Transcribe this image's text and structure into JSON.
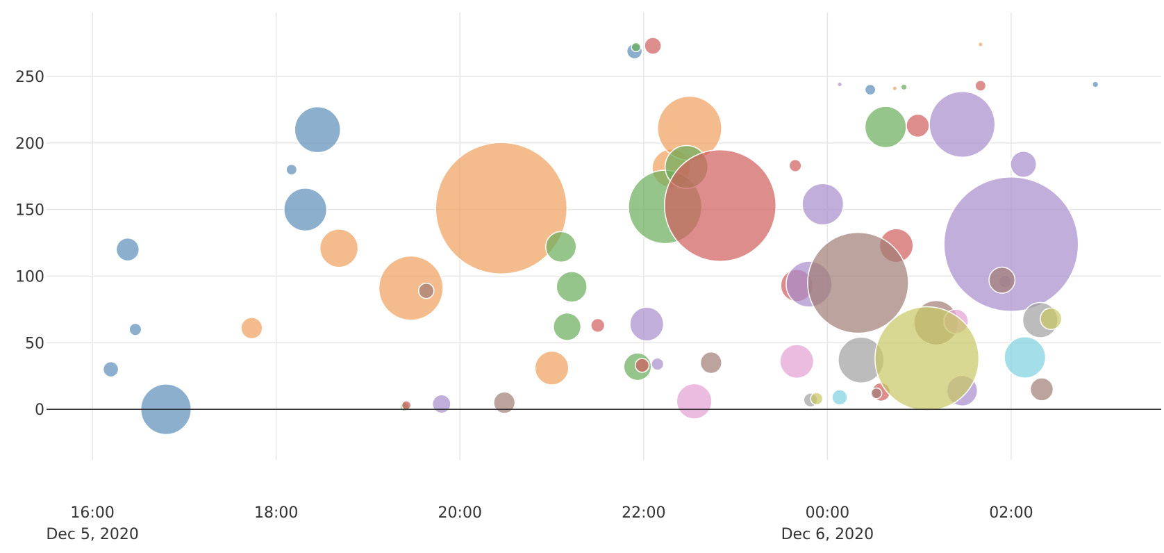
{
  "chart_data": {
    "type": "scatter",
    "marker": "bubble",
    "title": "",
    "xlabel": "",
    "ylabel": "",
    "grid": true,
    "legend": "none",
    "xlim": [
      "2020-12-05T15:30",
      "2020-12-06T03:38"
    ],
    "ylim": [
      -38,
      298
    ],
    "x_ticks": [
      {
        "value": "2020-12-05T16:00",
        "label": "16:00",
        "sublabel": "Dec 5, 2020"
      },
      {
        "value": "2020-12-05T18:00",
        "label": "18:00",
        "sublabel": ""
      },
      {
        "value": "2020-12-05T20:00",
        "label": "20:00",
        "sublabel": ""
      },
      {
        "value": "2020-12-05T22:00",
        "label": "22:00",
        "sublabel": ""
      },
      {
        "value": "2020-12-06T00:00",
        "label": "00:00",
        "sublabel": "Dec 6, 2020"
      },
      {
        "value": "2020-12-06T02:00",
        "label": "02:00",
        "sublabel": ""
      }
    ],
    "y_ticks": [
      0,
      50,
      100,
      150,
      200,
      250
    ],
    "series": [
      {
        "color": "#5b8db8",
        "points": [
          {
            "x": "2020-12-05T16:12",
            "y": 30,
            "size": 10
          },
          {
            "x": "2020-12-05T16:23",
            "y": 120,
            "size": 15
          },
          {
            "x": "2020-12-05T16:28",
            "y": 60,
            "size": 8
          },
          {
            "x": "2020-12-05T16:48",
            "y": 0,
            "size": 33
          },
          {
            "x": "2020-12-05T18:10",
            "y": 180,
            "size": 7
          },
          {
            "x": "2020-12-05T18:19",
            "y": 150,
            "size": 28
          },
          {
            "x": "2020-12-05T18:27",
            "y": 210,
            "size": 30
          },
          {
            "x": "2020-12-05T21:54",
            "y": 269,
            "size": 10
          },
          {
            "x": "2020-12-06T00:28",
            "y": 240,
            "size": 7
          },
          {
            "x": "2020-12-06T02:55",
            "y": 244,
            "size": 4
          }
        ]
      },
      {
        "color": "#f0a05c",
        "points": [
          {
            "x": "2020-12-05T17:44",
            "y": 61,
            "size": 14
          },
          {
            "x": "2020-12-05T18:41",
            "y": 121,
            "size": 25
          },
          {
            "x": "2020-12-05T19:28",
            "y": 91,
            "size": 42
          },
          {
            "x": "2020-12-05T20:27",
            "y": 151,
            "size": 86
          },
          {
            "x": "2020-12-05T21:00",
            "y": 31,
            "size": 22
          },
          {
            "x": "2020-12-05T22:18",
            "y": 181,
            "size": 25
          },
          {
            "x": "2020-12-05T22:30",
            "y": 211,
            "size": 42
          },
          {
            "x": "2020-12-06T00:44",
            "y": 241,
            "size": 3
          },
          {
            "x": "2020-12-06T01:40",
            "y": 274,
            "size": 3
          }
        ]
      },
      {
        "color": "#6aad5a",
        "points": [
          {
            "x": "2020-12-05T19:24",
            "y": 2,
            "size": 6
          },
          {
            "x": "2020-12-05T21:06",
            "y": 122,
            "size": 20
          },
          {
            "x": "2020-12-05T21:13",
            "y": 92,
            "size": 20
          },
          {
            "x": "2020-12-05T21:10",
            "y": 62,
            "size": 18
          },
          {
            "x": "2020-12-05T21:55",
            "y": 272,
            "size": 6
          },
          {
            "x": "2020-12-05T21:56",
            "y": 32,
            "size": 18
          },
          {
            "x": "2020-12-05T22:14",
            "y": 152,
            "size": 48
          },
          {
            "x": "2020-12-05T22:28",
            "y": 182,
            "size": 28
          },
          {
            "x": "2020-12-06T00:38",
            "y": 212,
            "size": 27
          },
          {
            "x": "2020-12-06T00:50",
            "y": 242,
            "size": 4
          }
        ]
      },
      {
        "color": "#d05c5c",
        "points": [
          {
            "x": "2020-12-05T19:25",
            "y": 3,
            "size": 6
          },
          {
            "x": "2020-12-05T21:30",
            "y": 63,
            "size": 9
          },
          {
            "x": "2020-12-05T21:59",
            "y": 33,
            "size": 9
          },
          {
            "x": "2020-12-05T22:06",
            "y": 273,
            "size": 11
          },
          {
            "x": "2020-12-05T22:50",
            "y": 153,
            "size": 73
          },
          {
            "x": "2020-12-05T23:39",
            "y": 183,
            "size": 8
          },
          {
            "x": "2020-12-05T23:40",
            "y": 93,
            "size": 21
          },
          {
            "x": "2020-12-06T00:35",
            "y": 13,
            "size": 12
          },
          {
            "x": "2020-12-06T00:45",
            "y": 123,
            "size": 22
          },
          {
            "x": "2020-12-06T00:59",
            "y": 213,
            "size": 15
          },
          {
            "x": "2020-12-06T01:40",
            "y": 243,
            "size": 7
          }
        ]
      },
      {
        "color": "#a88ccc",
        "points": [
          {
            "x": "2020-12-05T19:48",
            "y": 4,
            "size": 12
          },
          {
            "x": "2020-12-05T22:02",
            "y": 64,
            "size": 22
          },
          {
            "x": "2020-12-05T22:09",
            "y": 34,
            "size": 8
          },
          {
            "x": "2020-12-05T23:48",
            "y": 94,
            "size": 30
          },
          {
            "x": "2020-12-05T23:57",
            "y": 154,
            "size": 27
          },
          {
            "x": "2020-12-06T00:08",
            "y": 244,
            "size": 3
          },
          {
            "x": "2020-12-06T01:28",
            "y": 14,
            "size": 20
          },
          {
            "x": "2020-12-06T01:28",
            "y": 214,
            "size": 43
          },
          {
            "x": "2020-12-06T01:56",
            "y": 96,
            "size": 8
          },
          {
            "x": "2020-12-06T02:00",
            "y": 124,
            "size": 88
          },
          {
            "x": "2020-12-06T02:08",
            "y": 184,
            "size": 17
          }
        ]
      },
      {
        "color": "#a07c74",
        "points": [
          {
            "x": "2020-12-05T19:38",
            "y": 89,
            "size": 10
          },
          {
            "x": "2020-12-05T20:29",
            "y": 5,
            "size": 14
          },
          {
            "x": "2020-12-05T22:44",
            "y": 35,
            "size": 14
          },
          {
            "x": "2020-12-06T00:20",
            "y": 95,
            "size": 66
          },
          {
            "x": "2020-12-06T00:32",
            "y": 12,
            "size": 7
          },
          {
            "x": "2020-12-06T01:11",
            "y": 65,
            "size": 29
          },
          {
            "x": "2020-12-06T01:54",
            "y": 97,
            "size": 17
          },
          {
            "x": "2020-12-06T02:20",
            "y": 15,
            "size": 15
          }
        ]
      },
      {
        "color": "#e3a0d2",
        "points": [
          {
            "x": "2020-12-05T22:33",
            "y": 6,
            "size": 23
          },
          {
            "x": "2020-12-05T23:40",
            "y": 36,
            "size": 22
          },
          {
            "x": "2020-12-06T01:24",
            "y": 66,
            "size": 16
          }
        ]
      },
      {
        "color": "#a0a0a0",
        "points": [
          {
            "x": "2020-12-05T23:49",
            "y": 7,
            "size": 9
          },
          {
            "x": "2020-12-06T00:22",
            "y": 37,
            "size": 30
          },
          {
            "x": "2020-12-06T02:19",
            "y": 67,
            "size": 23
          }
        ]
      },
      {
        "color": "#c8c864",
        "points": [
          {
            "x": "2020-12-05T23:53",
            "y": 8,
            "size": 8
          },
          {
            "x": "2020-12-06T01:05",
            "y": 38,
            "size": 68
          },
          {
            "x": "2020-12-06T02:26",
            "y": 68,
            "size": 14
          }
        ]
      },
      {
        "color": "#7ed0de",
        "points": [
          {
            "x": "2020-12-06T00:08",
            "y": 9,
            "size": 10
          },
          {
            "x": "2020-12-06T02:09",
            "y": 39,
            "size": 27
          }
        ]
      }
    ]
  }
}
